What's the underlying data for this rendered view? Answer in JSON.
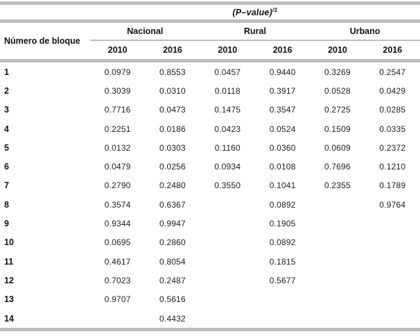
{
  "title": {
    "main": "(P–value)",
    "sup": "/1"
  },
  "header": {
    "row_label": "Número de bloque",
    "groups": [
      {
        "label": "Nacional",
        "years": [
          "2010",
          "2016"
        ]
      },
      {
        "label": "Rural",
        "years": [
          "2010",
          "2016"
        ]
      },
      {
        "label": "Urbano",
        "years": [
          "2010",
          "2016"
        ]
      }
    ]
  },
  "table": {
    "rows": [
      {
        "block": "1",
        "values": [
          "0.0979",
          "0.8553",
          "0.0457",
          "0.9440",
          "0.3269",
          "0.2547"
        ]
      },
      {
        "block": "2",
        "values": [
          "0.3039",
          "0.0310",
          "0.0118",
          "0.3917",
          "0.0528",
          "0.0429"
        ]
      },
      {
        "block": "3",
        "values": [
          "0.7716",
          "0.0473",
          "0.1475",
          "0.3547",
          "0.2725",
          "0.0285"
        ]
      },
      {
        "block": "4",
        "values": [
          "0.2251",
          "0.0186",
          "0.0423",
          "0.0524",
          "0.1509",
          "0.0335"
        ]
      },
      {
        "block": "5",
        "values": [
          "0.0132",
          "0.0303",
          "0.1160",
          "0.0360",
          "0.0609",
          "0.2372"
        ]
      },
      {
        "block": "6",
        "values": [
          "0.0479",
          "0.0256",
          "0.0934",
          "0.0108",
          "0.7696",
          "0.1210"
        ]
      },
      {
        "block": "7",
        "values": [
          "0.2790",
          "0.2480",
          "0.3550",
          "0.1041",
          "0.2355",
          "0.1789"
        ]
      },
      {
        "block": "8",
        "values": [
          "0.3574",
          "0.6367",
          "",
          "0.0892",
          "",
          "0.9764"
        ]
      },
      {
        "block": "9",
        "values": [
          "0.9344",
          "0.9947",
          "",
          "0.1905",
          "",
          ""
        ]
      },
      {
        "block": "10",
        "values": [
          "0.0695",
          "0.2860",
          "",
          "0.0892",
          "",
          ""
        ]
      },
      {
        "block": "11",
        "values": [
          "0.4617",
          "0.8054",
          "",
          "0.1815",
          "",
          ""
        ]
      },
      {
        "block": "12",
        "values": [
          "0.7023",
          "0.2487",
          "",
          "0.5677",
          "",
          ""
        ]
      },
      {
        "block": "13",
        "values": [
          "0.9707",
          "0.5616",
          "",
          "",
          "",
          ""
        ]
      },
      {
        "block": "14",
        "values": [
          "",
          "0.4432",
          "",
          "",
          "",
          ""
        ]
      }
    ]
  },
  "colors": {
    "rule_gray": "#bcbdc1",
    "text": "#1c1c1c"
  }
}
